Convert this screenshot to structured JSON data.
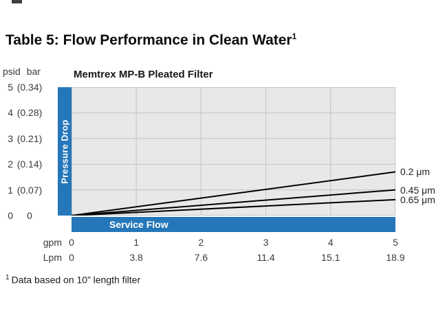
{
  "page": {
    "title": "Table 5: Flow Performance in Clean Water",
    "title_sup": "1",
    "footnote_sup": "1",
    "footnote": "Data based on 10” length filter"
  },
  "chart": {
    "title": "Memtrex MP-B Pleated Filter",
    "pressure_label": "Pressure Drop",
    "service_label": "Service Flow",
    "y_units": {
      "left": "psid",
      "right": "bar"
    },
    "x_units": {
      "top": "gpm",
      "bottom": "Lpm"
    },
    "y_ticks": [
      {
        "psid": "5",
        "bar": "(0.34)"
      },
      {
        "psid": "4",
        "bar": "(0.28)"
      },
      {
        "psid": "3",
        "bar": "(0.21)"
      },
      {
        "psid": "2",
        "bar": "(0.14)"
      },
      {
        "psid": "1",
        "bar": "(0.07)"
      },
      {
        "psid": "0",
        "bar": "0"
      }
    ],
    "x_ticks_gpm": [
      "0",
      "1",
      "2",
      "3",
      "4",
      "5"
    ],
    "x_ticks_lpm": [
      "0",
      "3.8",
      "7.6",
      "11.4",
      "15.1",
      "18.9"
    ]
  },
  "chart_data": {
    "type": "line",
    "title": "Memtrex MP-B Pleated Filter",
    "xlabel": "Service Flow",
    "ylabel": "Pressure Drop",
    "x_unit_labels": [
      "gpm",
      "Lpm"
    ],
    "y_unit_labels": [
      "psid",
      "bar"
    ],
    "xlim": [
      0,
      5
    ],
    "ylim": [
      0,
      5
    ],
    "grid": true,
    "legend_position": "right-of-line-ends",
    "series": [
      {
        "name": "0.2 μm",
        "x": [
          0,
          5
        ],
        "y": [
          0,
          1.7
        ]
      },
      {
        "name": "0.45 μm",
        "x": [
          0,
          5
        ],
        "y": [
          0,
          1.0
        ]
      },
      {
        "name": "0.65 μm",
        "x": [
          0,
          5
        ],
        "y": [
          0,
          0.62
        ]
      }
    ]
  },
  "colors": {
    "accent_blue": "#2577b9",
    "plot_bg": "#e8e8e8",
    "grid_line": "#c2c2c2",
    "series_line": "#000000"
  }
}
